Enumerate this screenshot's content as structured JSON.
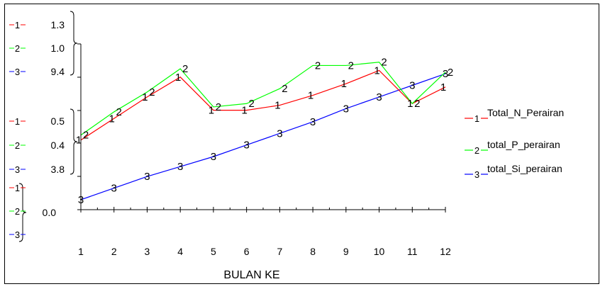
{
  "chart_data": {
    "type": "line",
    "xlabel": "BULAN KE",
    "categories": [
      "1",
      "2",
      "3",
      "4",
      "5",
      "6",
      "7",
      "8",
      "9",
      "10",
      "11",
      "12"
    ],
    "series": [
      {
        "name": "Total_N_Perairan",
        "marker": "1",
        "color": "#ff0000",
        "values": [
          0.42,
          0.55,
          0.68,
          0.8,
          0.6,
          0.6,
          0.63,
          0.69,
          0.76,
          0.84,
          0.64,
          0.74
        ]
      },
      {
        "name": "total_P_perairan",
        "marker": "2",
        "color": "#00ff00",
        "values": [
          0.45,
          0.59,
          0.71,
          0.85,
          0.62,
          0.64,
          0.73,
          0.87,
          0.87,
          0.89,
          0.64,
          0.83
        ]
      },
      {
        "name": "total_Si_perairan",
        "marker": "3",
        "color": "#0000ff",
        "values": [
          0.06,
          0.13,
          0.2,
          0.26,
          0.32,
          0.39,
          0.46,
          0.53,
          0.61,
          0.68,
          0.75,
          0.82
        ]
      }
    ],
    "axis_groups": [
      {
        "ticks": [
          "1.3",
          "1.0",
          "9.4"
        ]
      },
      {
        "ticks": [
          "0.5",
          "0.4",
          "3.8"
        ]
      },
      {
        "ticks": [
          "0.0"
        ]
      }
    ],
    "legend_position": "right",
    "grid": false
  }
}
